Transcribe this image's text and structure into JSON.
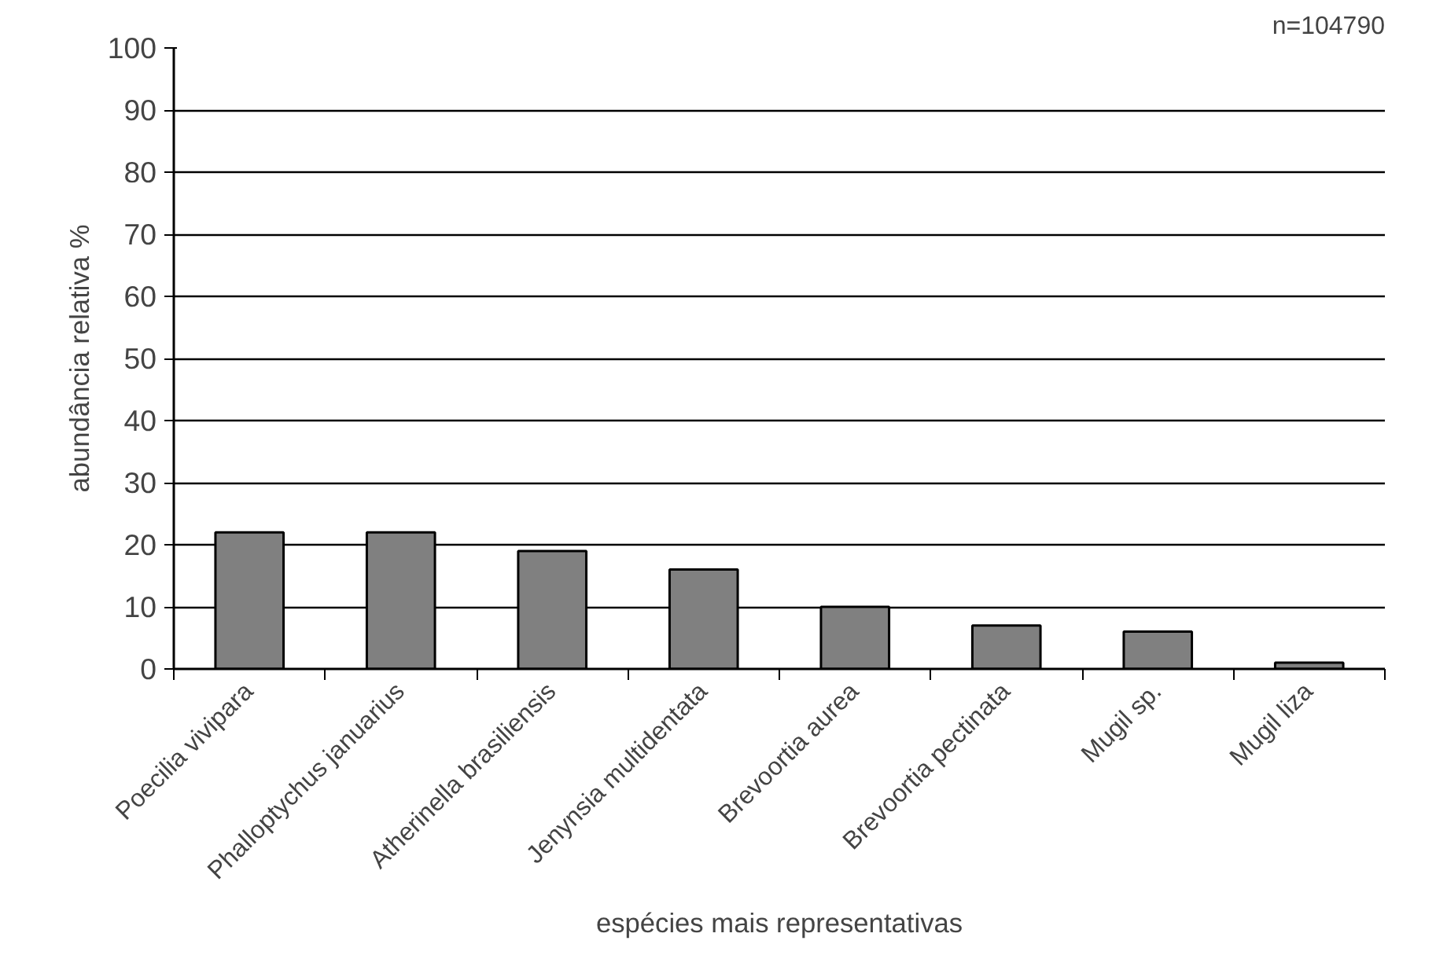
{
  "chart_data": {
    "type": "bar",
    "categories": [
      "Poecilia vivipara",
      "Phalloptychus januarius",
      "Atherinella brasiliensis",
      "Jenynsia multidentata",
      "Brevoortia aurea",
      "Brevoortia pectinata",
      "Mugil sp.",
      "Mugil liza"
    ],
    "values": [
      22,
      22,
      19,
      16,
      10,
      7,
      6,
      1
    ],
    "color": "#808080",
    "xlabel": "espécies mais representativas",
    "ylabel": "abundância relativa %",
    "ylim": [
      0,
      100
    ],
    "yticks": [
      0,
      10,
      20,
      30,
      40,
      50,
      60,
      70,
      80,
      90,
      100
    ],
    "grid": "y",
    "annotations": [
      "n=104790"
    ]
  }
}
